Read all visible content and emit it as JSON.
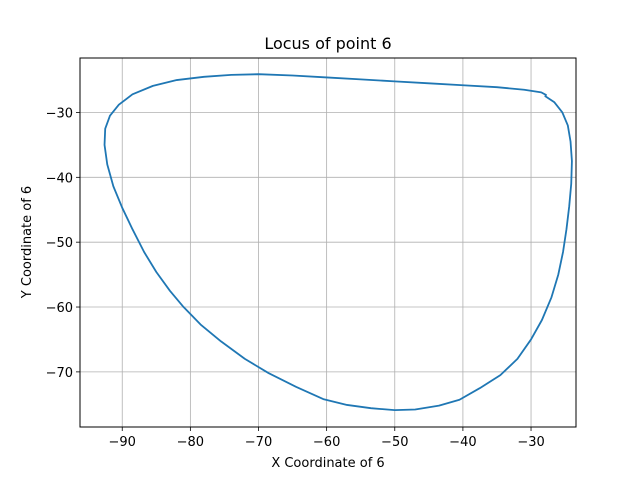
{
  "chart_data": {
    "type": "line",
    "title": "Locus of point 6",
    "xlabel": "X Coordinate of 6",
    "ylabel": "Y Coordinate of 6",
    "xlim": [
      -96.2,
      -23.4
    ],
    "ylim": [
      -78.5,
      -21.6
    ],
    "xticks": [
      -90,
      -80,
      -70,
      -60,
      -50,
      -40,
      -30
    ],
    "yticks": [
      -70,
      -60,
      -50,
      -40,
      -30
    ],
    "xtick_labels": [
      "−90",
      "−80",
      "−70",
      "−60",
      "−50",
      "−40",
      "−30"
    ],
    "ytick_labels": [
      "−70",
      "−60",
      "−50",
      "−40",
      "−30"
    ],
    "grid": true,
    "line_color": "#1f77b4",
    "series": [
      {
        "points": [
          [
            -27.9,
            -27.5
          ],
          [
            -26.6,
            -28.4
          ],
          [
            -25.4,
            -30.0
          ],
          [
            -24.6,
            -32.0
          ],
          [
            -24.2,
            -34.5
          ],
          [
            -24.0,
            -37.5
          ],
          [
            -24.1,
            -41.0
          ],
          [
            -24.4,
            -44.5
          ],
          [
            -24.8,
            -48.0
          ],
          [
            -25.3,
            -51.5
          ],
          [
            -26.0,
            -55.0
          ],
          [
            -27.0,
            -58.5
          ],
          [
            -28.4,
            -62.0
          ],
          [
            -30.0,
            -65.0
          ],
          [
            -32.0,
            -68.0
          ],
          [
            -34.5,
            -70.5
          ],
          [
            -37.5,
            -72.5
          ],
          [
            -40.5,
            -74.3
          ],
          [
            -43.5,
            -75.2
          ],
          [
            -47.0,
            -75.8
          ],
          [
            -50.0,
            -75.9
          ],
          [
            -53.5,
            -75.6
          ],
          [
            -57.0,
            -75.1
          ],
          [
            -60.5,
            -74.2
          ],
          [
            -64.5,
            -72.3
          ],
          [
            -68.5,
            -70.2
          ],
          [
            -72.0,
            -68.0
          ],
          [
            -75.5,
            -65.3
          ],
          [
            -78.5,
            -62.7
          ],
          [
            -81.0,
            -60.0
          ],
          [
            -83.0,
            -57.5
          ],
          [
            -85.0,
            -54.6
          ],
          [
            -86.8,
            -51.5
          ],
          [
            -88.5,
            -48.0
          ],
          [
            -90.0,
            -44.7
          ],
          [
            -91.3,
            -41.4
          ],
          [
            -92.2,
            -38.0
          ],
          [
            -92.6,
            -35.0
          ],
          [
            -92.5,
            -32.5
          ],
          [
            -91.8,
            -30.5
          ],
          [
            -90.5,
            -28.8
          ],
          [
            -88.5,
            -27.2
          ],
          [
            -85.5,
            -25.9
          ],
          [
            -82.0,
            -25.0
          ],
          [
            -78.0,
            -24.5
          ],
          [
            -74.0,
            -24.2
          ],
          [
            -70.0,
            -24.1
          ],
          [
            -65.0,
            -24.3
          ],
          [
            -60.0,
            -24.6
          ],
          [
            -55.0,
            -24.9
          ],
          [
            -50.0,
            -25.2
          ],
          [
            -45.0,
            -25.5
          ],
          [
            -40.0,
            -25.8
          ],
          [
            -35.0,
            -26.1
          ],
          [
            -31.0,
            -26.5
          ],
          [
            -28.5,
            -26.9
          ],
          [
            -27.8,
            -27.3
          ]
        ]
      }
    ]
  }
}
